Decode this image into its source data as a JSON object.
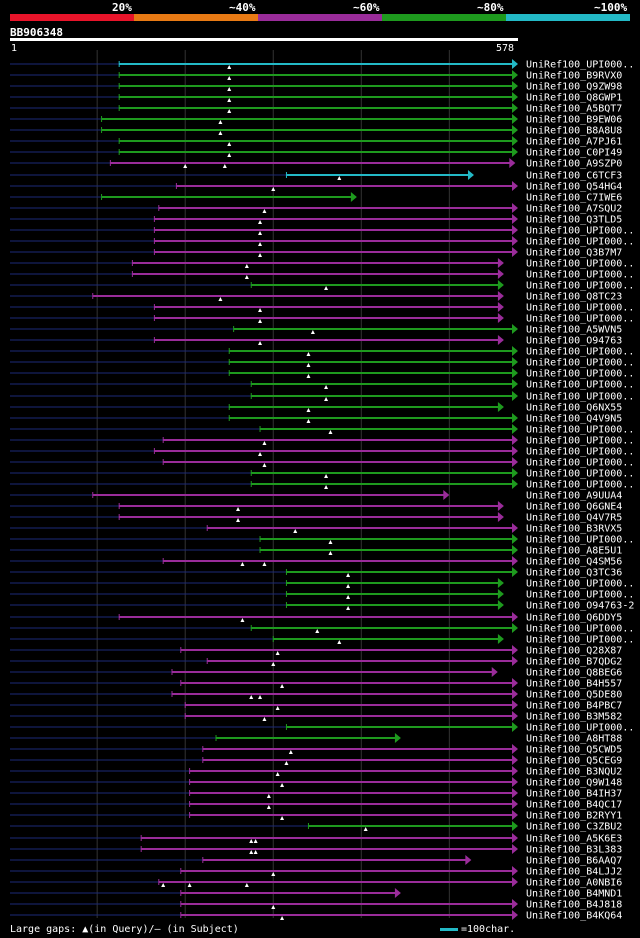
{
  "query": {
    "id": "BB906348",
    "start": "1",
    "end": "578"
  },
  "identity_legend": {
    "labels": [
      "20%",
      "~40%",
      "~60%",
      "~80%",
      "~100%"
    ],
    "colors": [
      "#e8142a",
      "#e87a14",
      "#9a2c9a",
      "#1e9a1e",
      "#23b9c6"
    ]
  },
  "chart_data": {
    "type": "alignment-overview",
    "query_length": 578,
    "x_range": [
      1,
      578
    ],
    "hits": [
      {
        "name": "UniRef100_UPI000..",
        "q_start": 125,
        "q_end": 578,
        "identity_bin": "~100%",
        "gaps": [
          250
        ]
      },
      {
        "name": "UniRef100_B9RVX0",
        "q_start": 125,
        "q_end": 578,
        "identity_bin": "~80%",
        "gaps": [
          250
        ]
      },
      {
        "name": "UniRef100_Q9ZW98",
        "q_start": 125,
        "q_end": 578,
        "identity_bin": "~80%",
        "gaps": [
          250
        ]
      },
      {
        "name": "UniRef100_Q8GWP1",
        "q_start": 125,
        "q_end": 578,
        "identity_bin": "~80%",
        "gaps": [
          250
        ]
      },
      {
        "name": "UniRef100_A5BQT7",
        "q_start": 125,
        "q_end": 578,
        "identity_bin": "~80%",
        "gaps": [
          250
        ]
      },
      {
        "name": "UniRef100_B9EW06",
        "q_start": 105,
        "q_end": 578,
        "identity_bin": "~80%",
        "gaps": [
          240
        ]
      },
      {
        "name": "UniRef100_B8A8U8",
        "q_start": 105,
        "q_end": 578,
        "identity_bin": "~80%",
        "gaps": [
          240
        ]
      },
      {
        "name": "UniRef100_A7PJ61",
        "q_start": 125,
        "q_end": 578,
        "identity_bin": "~80%",
        "gaps": [
          250
        ]
      },
      {
        "name": "UniRef100_C0PI49",
        "q_start": 125,
        "q_end": 578,
        "identity_bin": "~80%",
        "gaps": [
          250
        ]
      },
      {
        "name": "UniRef100_A9SZP0",
        "q_start": 115,
        "q_end": 575,
        "identity_bin": "~60%",
        "gaps": [
          200,
          245
        ]
      },
      {
        "name": "UniRef100_C6TCF3",
        "q_start": 315,
        "q_end": 528,
        "identity_bin": "~100%",
        "gaps": [
          375
        ]
      },
      {
        "name": "UniRef100_Q54HG4",
        "q_start": 190,
        "q_end": 578,
        "identity_bin": "~60%",
        "gaps": [
          300
        ]
      },
      {
        "name": "UniRef100_C7IWE6",
        "q_start": 105,
        "q_end": 395,
        "identity_bin": "~80%",
        "gaps": []
      },
      {
        "name": "UniRef100_A7SQU2",
        "q_start": 170,
        "q_end": 578,
        "identity_bin": "~60%",
        "gaps": [
          290
        ]
      },
      {
        "name": "UniRef100_Q3TLD5",
        "q_start": 165,
        "q_end": 578,
        "identity_bin": "~60%",
        "gaps": [
          285
        ]
      },
      {
        "name": "UniRef100_UPI000..",
        "q_start": 165,
        "q_end": 578,
        "identity_bin": "~60%",
        "gaps": [
          285
        ]
      },
      {
        "name": "UniRef100_UPI000..",
        "q_start": 165,
        "q_end": 578,
        "identity_bin": "~60%",
        "gaps": [
          285
        ]
      },
      {
        "name": "UniRef100_Q3B7M7",
        "q_start": 165,
        "q_end": 578,
        "identity_bin": "~60%",
        "gaps": [
          285
        ]
      },
      {
        "name": "UniRef100_UPI000..",
        "q_start": 140,
        "q_end": 562,
        "identity_bin": "~60%",
        "gaps": [
          270
        ]
      },
      {
        "name": "UniRef100_UPI000..",
        "q_start": 140,
        "q_end": 562,
        "identity_bin": "~60%",
        "gaps": [
          270
        ]
      },
      {
        "name": "UniRef100_UPI000..",
        "q_start": 275,
        "q_end": 562,
        "identity_bin": "~80%",
        "gaps": [
          360
        ]
      },
      {
        "name": "UniRef100_Q8TC23",
        "q_start": 95,
        "q_end": 562,
        "identity_bin": "~60%",
        "gaps": [
          240
        ]
      },
      {
        "name": "UniRef100_UPI000..",
        "q_start": 165,
        "q_end": 562,
        "identity_bin": "~60%",
        "gaps": [
          285
        ]
      },
      {
        "name": "UniRef100_UPI000..",
        "q_start": 165,
        "q_end": 562,
        "identity_bin": "~60%",
        "gaps": [
          285
        ]
      },
      {
        "name": "UniRef100_A5WVN5",
        "q_start": 255,
        "q_end": 578,
        "identity_bin": "~80%",
        "gaps": [
          345
        ]
      },
      {
        "name": "UniRef100_O94763",
        "q_start": 165,
        "q_end": 562,
        "identity_bin": "~60%",
        "gaps": [
          285
        ]
      },
      {
        "name": "UniRef100_UPI000..",
        "q_start": 250,
        "q_end": 578,
        "identity_bin": "~80%",
        "gaps": [
          340
        ]
      },
      {
        "name": "UniRef100_UPI000..",
        "q_start": 250,
        "q_end": 578,
        "identity_bin": "~80%",
        "gaps": [
          340
        ]
      },
      {
        "name": "UniRef100_UPI000..",
        "q_start": 250,
        "q_end": 578,
        "identity_bin": "~80%",
        "gaps": [
          340
        ]
      },
      {
        "name": "UniRef100_UPI000..",
        "q_start": 275,
        "q_end": 578,
        "identity_bin": "~80%",
        "gaps": [
          360
        ]
      },
      {
        "name": "UniRef100_UPI000..",
        "q_start": 275,
        "q_end": 578,
        "identity_bin": "~80%",
        "gaps": [
          360
        ]
      },
      {
        "name": "UniRef100_Q6NX55",
        "q_start": 250,
        "q_end": 562,
        "identity_bin": "~80%",
        "gaps": [
          340
        ]
      },
      {
        "name": "UniRef100_Q4V9N5",
        "q_start": 250,
        "q_end": 578,
        "identity_bin": "~80%",
        "gaps": [
          340
        ]
      },
      {
        "name": "UniRef100_UPI000..",
        "q_start": 285,
        "q_end": 578,
        "identity_bin": "~80%",
        "gaps": [
          365
        ]
      },
      {
        "name": "UniRef100_UPI000..",
        "q_start": 175,
        "q_end": 578,
        "identity_bin": "~60%",
        "gaps": [
          290
        ]
      },
      {
        "name": "UniRef100_UPI000..",
        "q_start": 165,
        "q_end": 578,
        "identity_bin": "~60%",
        "gaps": [
          285
        ]
      },
      {
        "name": "UniRef100_UPI000..",
        "q_start": 175,
        "q_end": 578,
        "identity_bin": "~60%",
        "gaps": [
          290
        ]
      },
      {
        "name": "UniRef100_UPI000..",
        "q_start": 275,
        "q_end": 578,
        "identity_bin": "~80%",
        "gaps": [
          360
        ]
      },
      {
        "name": "UniRef100_UPI000..",
        "q_start": 275,
        "q_end": 578,
        "identity_bin": "~80%",
        "gaps": [
          360
        ]
      },
      {
        "name": "UniRef100_A9UUA4",
        "q_start": 95,
        "q_end": 500,
        "identity_bin": "~60%",
        "gaps": []
      },
      {
        "name": "UniRef100_Q6GNE4",
        "q_start": 125,
        "q_end": 562,
        "identity_bin": "~60%",
        "gaps": [
          260
        ]
      },
      {
        "name": "UniRef100_Q4V7R5",
        "q_start": 125,
        "q_end": 562,
        "identity_bin": "~60%",
        "gaps": [
          260
        ]
      },
      {
        "name": "UniRef100_B3RVX5",
        "q_start": 225,
        "q_end": 578,
        "identity_bin": "~60%",
        "gaps": [
          325
        ]
      },
      {
        "name": "UniRef100_UPI000..",
        "q_start": 285,
        "q_end": 578,
        "identity_bin": "~80%",
        "gaps": [
          365
        ]
      },
      {
        "name": "UniRef100_A8E5U1",
        "q_start": 285,
        "q_end": 578,
        "identity_bin": "~80%",
        "gaps": [
          365
        ]
      },
      {
        "name": "UniRef100_Q4SM56",
        "q_start": 175,
        "q_end": 578,
        "identity_bin": "~60%",
        "gaps": [
          265,
          290
        ]
      },
      {
        "name": "UniRef100_Q3TC36",
        "q_start": 315,
        "q_end": 578,
        "identity_bin": "~80%",
        "gaps": [
          385
        ]
      },
      {
        "name": "UniRef100_UPI000..",
        "q_start": 315,
        "q_end": 562,
        "identity_bin": "~80%",
        "gaps": [
          385
        ]
      },
      {
        "name": "UniRef100_UPI000..",
        "q_start": 315,
        "q_end": 562,
        "identity_bin": "~80%",
        "gaps": [
          385
        ]
      },
      {
        "name": "UniRef100_O94763-2",
        "q_start": 315,
        "q_end": 562,
        "identity_bin": "~80%",
        "gaps": [
          385
        ]
      },
      {
        "name": "UniRef100_Q6DDY5",
        "q_start": 125,
        "q_end": 578,
        "identity_bin": "~60%",
        "gaps": [
          265
        ]
      },
      {
        "name": "UniRef100_UPI000..",
        "q_start": 275,
        "q_end": 578,
        "identity_bin": "~80%",
        "gaps": [
          350
        ]
      },
      {
        "name": "UniRef100_UPI000..",
        "q_start": 300,
        "q_end": 562,
        "identity_bin": "~80%",
        "gaps": [
          375
        ]
      },
      {
        "name": "UniRef100_Q28X87",
        "q_start": 195,
        "q_end": 578,
        "identity_bin": "~60%",
        "gaps": [
          305
        ]
      },
      {
        "name": "UniRef100_B7QDG2",
        "q_start": 225,
        "q_end": 578,
        "identity_bin": "~60%",
        "gaps": [
          300
        ]
      },
      {
        "name": "UniRef100_Q8BEG6",
        "q_start": 185,
        "q_end": 555,
        "identity_bin": "~60%",
        "gaps": []
      },
      {
        "name": "UniRef100_B4H557",
        "q_start": 195,
        "q_end": 578,
        "identity_bin": "~60%",
        "gaps": [
          310
        ]
      },
      {
        "name": "UniRef100_Q5DE80",
        "q_start": 185,
        "q_end": 578,
        "identity_bin": "~60%",
        "gaps": [
          275,
          285
        ]
      },
      {
        "name": "UniRef100_B4PBC7",
        "q_start": 200,
        "q_end": 578,
        "identity_bin": "~60%",
        "gaps": [
          305
        ]
      },
      {
        "name": "UniRef100_B3M582",
        "q_start": 200,
        "q_end": 578,
        "identity_bin": "~60%",
        "gaps": [
          290
        ]
      },
      {
        "name": "UniRef100_UPI000..",
        "q_start": 315,
        "q_end": 578,
        "identity_bin": "~80%",
        "gaps": []
      },
      {
        "name": "UniRef100_A8HT88",
        "q_start": 235,
        "q_end": 445,
        "identity_bin": "~80%",
        "gaps": []
      },
      {
        "name": "UniRef100_Q5CWD5",
        "q_start": 220,
        "q_end": 578,
        "identity_bin": "~60%",
        "gaps": [
          320
        ]
      },
      {
        "name": "UniRef100_Q5CEG9",
        "q_start": 220,
        "q_end": 578,
        "identity_bin": "~60%",
        "gaps": [
          315
        ]
      },
      {
        "name": "UniRef100_B3NQU2",
        "q_start": 205,
        "q_end": 578,
        "identity_bin": "~60%",
        "gaps": [
          305
        ]
      },
      {
        "name": "UniRef100_Q9W148",
        "q_start": 205,
        "q_end": 578,
        "identity_bin": "~60%",
        "gaps": [
          310
        ]
      },
      {
        "name": "UniRef100_B4IH37",
        "q_start": 205,
        "q_end": 578,
        "identity_bin": "~60%",
        "gaps": [
          295
        ]
      },
      {
        "name": "UniRef100_B4QC17",
        "q_start": 205,
        "q_end": 578,
        "identity_bin": "~60%",
        "gaps": [
          295
        ]
      },
      {
        "name": "UniRef100_B2RYY1",
        "q_start": 205,
        "q_end": 578,
        "identity_bin": "~60%",
        "gaps": [
          310
        ]
      },
      {
        "name": "UniRef100_C3ZBU2",
        "q_start": 340,
        "q_end": 578,
        "identity_bin": "~80%",
        "gaps": [
          405
        ]
      },
      {
        "name": "UniRef100_A5K6E3",
        "q_start": 150,
        "q_end": 578,
        "identity_bin": "~60%",
        "gaps": [
          275,
          280
        ]
      },
      {
        "name": "UniRef100_B3L383",
        "q_start": 150,
        "q_end": 578,
        "identity_bin": "~60%",
        "gaps": [
          275,
          280
        ]
      },
      {
        "name": "UniRef100_B6AAQ7",
        "q_start": 220,
        "q_end": 525,
        "identity_bin": "~60%",
        "gaps": []
      },
      {
        "name": "UniRef100_B4LJJ2",
        "q_start": 195,
        "q_end": 578,
        "identity_bin": "~60%",
        "gaps": [
          300
        ]
      },
      {
        "name": "UniRef100_A0NBI6",
        "q_start": 170,
        "q_end": 578,
        "identity_bin": "~60%",
        "gaps": [
          175,
          205,
          270
        ]
      },
      {
        "name": "UniRef100_B4MND1",
        "q_start": 195,
        "q_end": 445,
        "identity_bin": "~60%",
        "gaps": []
      },
      {
        "name": "UniRef100_B4J818",
        "q_start": 195,
        "q_end": 578,
        "identity_bin": "~60%",
        "gaps": [
          300
        ]
      },
      {
        "name": "UniRef100_B4KQ64",
        "q_start": 195,
        "q_end": 578,
        "identity_bin": "~60%",
        "gaps": [
          310
        ]
      }
    ]
  },
  "footer": {
    "gaps_text": "Large gaps: ▲(in Query)/– (in Subject)",
    "scale_text": "=100char."
  }
}
